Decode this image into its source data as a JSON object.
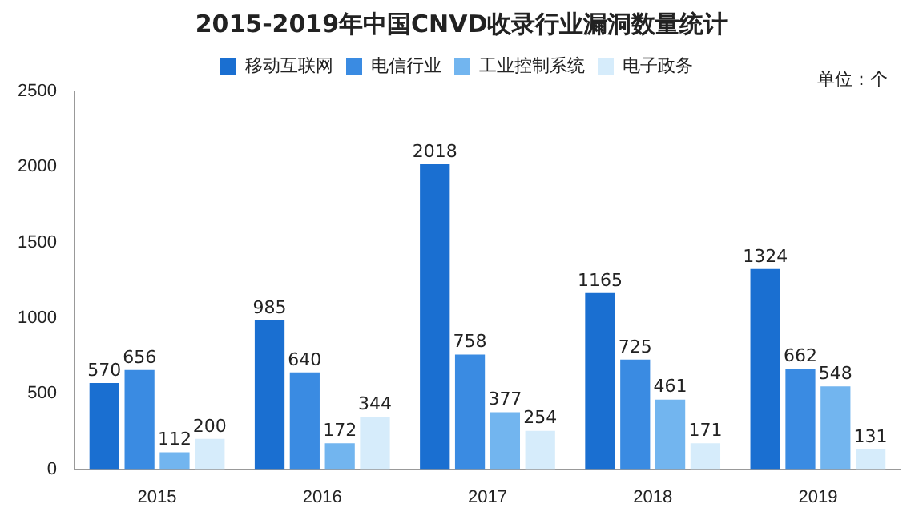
{
  "chart_data": {
    "type": "bar",
    "title": "2015-2019年中国CNVD收录行业漏洞数量统计",
    "categories": [
      "2015",
      "2016",
      "2017",
      "2018",
      "2019"
    ],
    "series": [
      {
        "name": "移动互联网",
        "color": "#1a6fd1",
        "values": [
          570,
          985,
          2018,
          1165,
          1324
        ]
      },
      {
        "name": "电信行业",
        "color": "#3a8be2",
        "values": [
          656,
          640,
          758,
          725,
          662
        ]
      },
      {
        "name": "工业控制系统",
        "color": "#72b5ef",
        "values": [
          112,
          172,
          377,
          461,
          548
        ]
      },
      {
        "name": "电子政务",
        "color": "#d6ecfb",
        "values": [
          200,
          344,
          254,
          171,
          131
        ]
      }
    ],
    "ylim": [
      0,
      2500
    ],
    "yticks": [
      0,
      500,
      1000,
      1500,
      2000,
      2500
    ],
    "grid": false,
    "legend": "top",
    "data_labels": true,
    "annotations": [
      "单位：个"
    ]
  }
}
